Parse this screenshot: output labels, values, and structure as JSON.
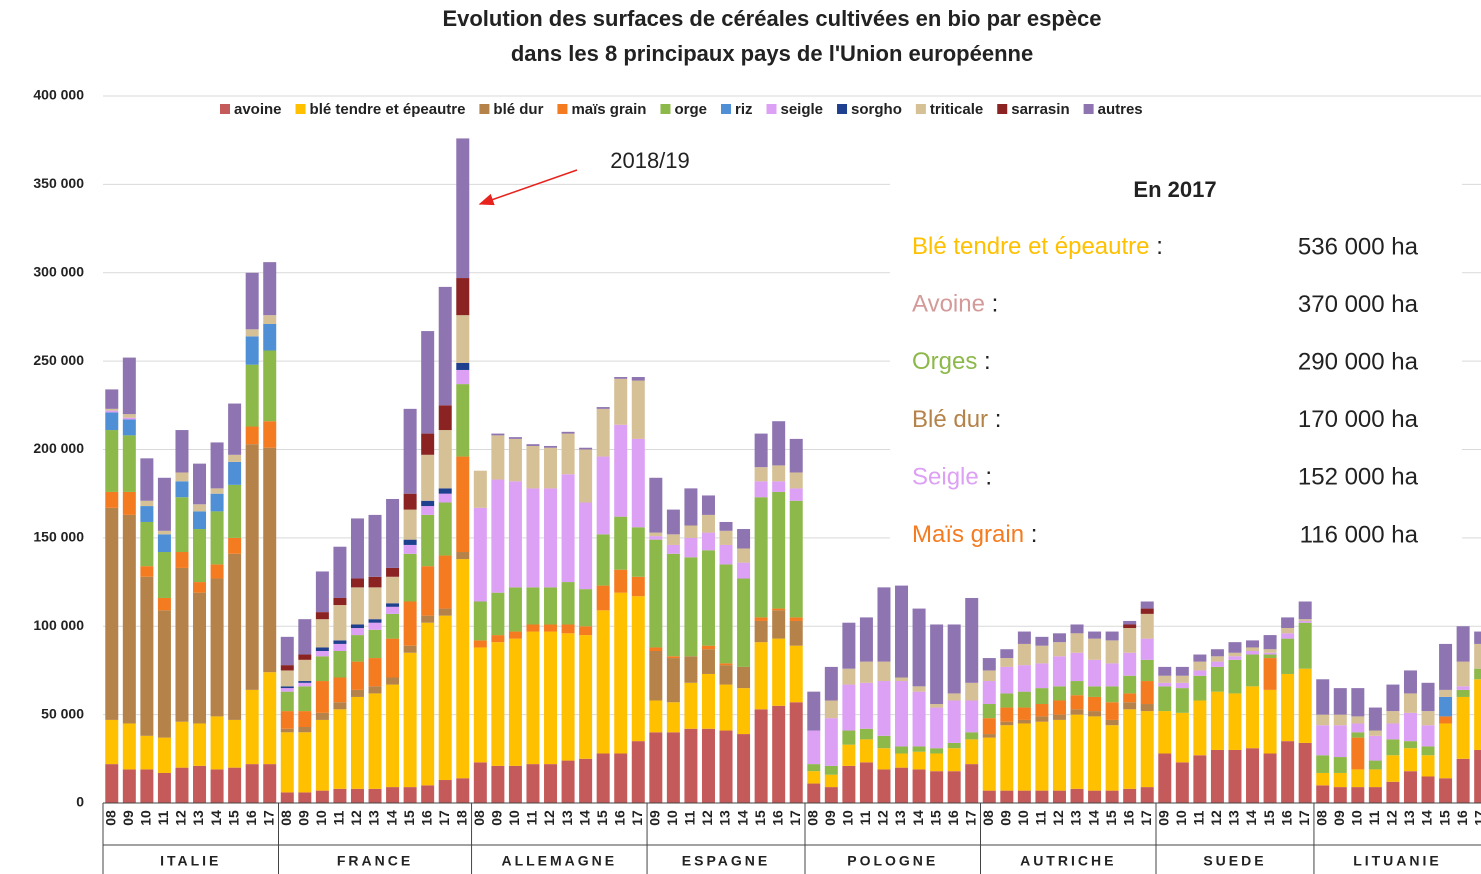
{
  "chart_data": {
    "type": "stacked_bar",
    "title": [
      "Evolution des surfaces de céréales cultivées en bio par espèce",
      "dans les 8 principaux pays de l'Union européenne"
    ],
    "groups": [
      {
        "label": "ITALIE",
        "categories": [
          "08",
          "09",
          "10",
          "11",
          "12",
          "13",
          "14",
          "15",
          "16",
          "17"
        ]
      },
      {
        "label": "FRANCE",
        "categories": [
          "08",
          "09",
          "10",
          "11",
          "12",
          "13",
          "14",
          "15",
          "16",
          "17",
          "18"
        ]
      },
      {
        "label": "ALLEMAGNE",
        "categories": [
          "08",
          "09",
          "10",
          "11",
          "12",
          "13",
          "14",
          "15",
          "16",
          "17"
        ]
      },
      {
        "label": "ESPAGNE",
        "categories": [
          "09",
          "10",
          "11",
          "12",
          "13",
          "14",
          "15",
          "16",
          "17"
        ]
      },
      {
        "label": "POLOGNE",
        "categories": [
          "08",
          "09",
          "10",
          "11",
          "12",
          "13",
          "14",
          "15",
          "16",
          "17"
        ]
      },
      {
        "label": "AUTRICHE",
        "categories": [
          "08",
          "09",
          "10",
          "11",
          "12",
          "13",
          "14",
          "15",
          "16",
          "17"
        ]
      },
      {
        "label": "SUEDE",
        "categories": [
          "09",
          "10",
          "11",
          "12",
          "13",
          "14",
          "15",
          "16",
          "17"
        ]
      },
      {
        "label": "LITUANIE",
        "categories": [
          "08",
          "09",
          "10",
          "11",
          "12",
          "13",
          "14",
          "15",
          "16",
          "17"
        ]
      }
    ],
    "series": [
      {
        "name": "avoine",
        "color": "#c55a5a",
        "values": [
          22000,
          19000,
          19000,
          17000,
          20000,
          21000,
          19000,
          20000,
          22000,
          22000,
          6000,
          6000,
          7000,
          8000,
          8000,
          8000,
          9000,
          9000,
          10000,
          13000,
          14000,
          23000,
          21000,
          21000,
          22000,
          22000,
          24000,
          25000,
          28000,
          28000,
          35000,
          40000,
          40000,
          42000,
          42000,
          41000,
          39000,
          53000,
          55000,
          57000,
          11000,
          9000,
          21000,
          23000,
          19000,
          20000,
          19000,
          18000,
          18000,
          22000,
          7000,
          7000,
          7000,
          7000,
          7000,
          8000,
          7000,
          7000,
          8000,
          9000,
          28000,
          23000,
          27000,
          30000,
          30000,
          31000,
          28000,
          35000,
          34000,
          10000,
          9000,
          9000,
          9000,
          12000,
          18000,
          15000,
          14000,
          25000,
          30000
        ]
      },
      {
        "name": "blé tendre et épeautre",
        "color": "#ffc000",
        "values": [
          25000,
          26000,
          19000,
          20000,
          26000,
          24000,
          30000,
          27000,
          42000,
          52000,
          34000,
          34000,
          40000,
          45000,
          52000,
          54000,
          58000,
          76000,
          92000,
          93000,
          124000,
          65000,
          70000,
          72000,
          75000,
          75000,
          72000,
          70000,
          81000,
          91000,
          82000,
          18000,
          17000,
          26000,
          31000,
          26000,
          26000,
          38000,
          38000,
          32000,
          7000,
          7000,
          12000,
          13000,
          12000,
          8000,
          10000,
          10000,
          13000,
          14000,
          30000,
          37000,
          38000,
          39000,
          40000,
          42000,
          42000,
          37000,
          45000,
          43000,
          24000,
          28000,
          31000,
          33000,
          32000,
          35000,
          36000,
          38000,
          42000,
          7000,
          8000,
          10000,
          10000,
          15000,
          13000,
          12000,
          31000,
          35000,
          40000
        ]
      },
      {
        "name": "blé dur",
        "color": "#b5834a",
        "values": [
          120000,
          118000,
          90000,
          72000,
          87000,
          74000,
          78000,
          94000,
          139000,
          127000,
          2000,
          3000,
          4000,
          4000,
          4000,
          4000,
          4000,
          4000,
          4000,
          4000,
          4000,
          0,
          0,
          0,
          0,
          0,
          0,
          0,
          0,
          0,
          0,
          28000,
          25000,
          15000,
          14000,
          11000,
          12000,
          12000,
          16000,
          14000,
          0,
          0,
          0,
          0,
          0,
          0,
          0,
          0,
          0,
          0,
          2000,
          2000,
          2000,
          3000,
          3000,
          3000,
          3000,
          3000,
          4000,
          4000,
          0,
          0,
          0,
          0,
          0,
          0,
          0,
          0,
          0,
          0,
          0,
          0,
          0,
          0,
          0,
          0,
          0,
          0,
          0
        ]
      },
      {
        "name": "maïs grain",
        "color": "#f47b20",
        "values": [
          9000,
          13000,
          6000,
          7000,
          9000,
          6000,
          8000,
          9000,
          10000,
          15000,
          10000,
          9000,
          18000,
          14000,
          16000,
          16000,
          22000,
          25000,
          28000,
          30000,
          54000,
          4000,
          4000,
          4000,
          4000,
          4000,
          5000,
          5000,
          14000,
          13000,
          11000,
          2000,
          1000,
          0,
          2000,
          1000,
          0,
          2000,
          1000,
          2000,
          0,
          0,
          0,
          0,
          0,
          0,
          0,
          0,
          0,
          0,
          9000,
          8000,
          7000,
          7000,
          8000,
          8000,
          8000,
          10000,
          5000,
          13000,
          0,
          0,
          0,
          0,
          0,
          0,
          18000,
          0,
          0,
          0,
          0,
          18000,
          0,
          0,
          0,
          0,
          4000,
          0,
          0
        ]
      },
      {
        "name": "orge",
        "color": "#8db84a",
        "values": [
          35000,
          32000,
          25000,
          26000,
          31000,
          30000,
          30000,
          30000,
          35000,
          40000,
          11000,
          14000,
          14000,
          15000,
          15000,
          16000,
          14000,
          27000,
          29000,
          30000,
          41000,
          22000,
          24000,
          25000,
          21000,
          21000,
          24000,
          21000,
          29000,
          30000,
          28000,
          61000,
          58000,
          56000,
          54000,
          56000,
          50000,
          68000,
          66000,
          66000,
          4000,
          5000,
          8000,
          6000,
          7000,
          4000,
          3000,
          3000,
          3000,
          4000,
          8000,
          8000,
          9000,
          9000,
          8000,
          8000,
          6000,
          9000,
          10000,
          12000,
          14000,
          14000,
          14000,
          14000,
          19000,
          18000,
          2000,
          20000,
          26000,
          10000,
          9000,
          3000,
          5000,
          9000,
          4000,
          5000,
          0,
          4000,
          6000
        ]
      },
      {
        "name": "riz",
        "color": "#4f8fd6",
        "values": [
          10000,
          9000,
          9000,
          10000,
          9000,
          10000,
          10000,
          13000,
          16000,
          15000,
          0,
          0,
          0,
          0,
          0,
          0,
          0,
          0,
          0,
          0,
          0,
          0,
          0,
          0,
          0,
          0,
          0,
          0,
          0,
          0,
          0,
          0,
          0,
          0,
          0,
          0,
          0,
          0,
          0,
          0,
          0,
          0,
          0,
          0,
          0,
          0,
          0,
          0,
          0,
          0,
          0,
          0,
          0,
          0,
          0,
          0,
          0,
          0,
          0,
          0,
          0,
          0,
          0,
          0,
          0,
          0,
          0,
          0,
          0,
          0,
          0,
          0,
          0,
          0,
          0,
          0,
          11000,
          0,
          0
        ]
      },
      {
        "name": "seigle",
        "color": "#dca0f4",
        "values": [
          1000,
          1000,
          0,
          0,
          0,
          0,
          0,
          0,
          0,
          0,
          2000,
          2000,
          3000,
          4000,
          4000,
          4000,
          4000,
          5000,
          5000,
          5000,
          8000,
          53000,
          64000,
          60000,
          56000,
          56000,
          61000,
          49000,
          44000,
          52000,
          50000,
          2000,
          5000,
          11000,
          10000,
          11000,
          9000,
          9000,
          6000,
          7000,
          19000,
          27000,
          26000,
          26000,
          31000,
          37000,
          31000,
          23000,
          24000,
          18000,
          13000,
          15000,
          15000,
          14000,
          17000,
          16000,
          15000,
          13000,
          13000,
          12000,
          2000,
          3000,
          3000,
          3000,
          2000,
          2000,
          1000,
          3000,
          1000,
          17000,
          18000,
          5000,
          14000,
          9000,
          16000,
          12000,
          0,
          2000,
          0
        ]
      },
      {
        "name": "sorgho",
        "color": "#1f3f8f",
        "values": [
          0,
          0,
          0,
          0,
          0,
          0,
          0,
          0,
          0,
          0,
          1000,
          1000,
          2000,
          2000,
          2000,
          2000,
          2000,
          3000,
          3000,
          3000,
          4000,
          0,
          0,
          0,
          0,
          0,
          0,
          0,
          0,
          0,
          0,
          0,
          0,
          0,
          0,
          0,
          0,
          0,
          0,
          0,
          0,
          0,
          0,
          0,
          0,
          0,
          0,
          0,
          0,
          0,
          0,
          0,
          0,
          0,
          0,
          0,
          0,
          0,
          0,
          0,
          0,
          0,
          0,
          0,
          0,
          0,
          0,
          0,
          0,
          0,
          0,
          0,
          0,
          0,
          0,
          0,
          0,
          0,
          0
        ]
      },
      {
        "name": "triticale",
        "color": "#d6c096",
        "values": [
          1000,
          2000,
          3000,
          2000,
          5000,
          4000,
          3000,
          4000,
          4000,
          5000,
          9000,
          12000,
          16000,
          20000,
          21000,
          18000,
          15000,
          17000,
          26000,
          33000,
          27000,
          21000,
          25000,
          24000,
          24000,
          23000,
          23000,
          30000,
          27000,
          26000,
          33000,
          2000,
          6000,
          7000,
          10000,
          8000,
          8000,
          8000,
          9000,
          9000,
          0,
          10000,
          9000,
          12000,
          11000,
          2000,
          3000,
          2000,
          4000,
          10000,
          6000,
          5000,
          12000,
          10000,
          8000,
          11000,
          12000,
          13000,
          14000,
          14000,
          4000,
          4000,
          5000,
          3000,
          2000,
          2000,
          2000,
          3000,
          1000,
          6000,
          6000,
          4000,
          3000,
          7000,
          11000,
          8000,
          4000,
          14000,
          14000
        ]
      },
      {
        "name": "sarrasin",
        "color": "#8b2323",
        "values": [
          0,
          0,
          0,
          0,
          0,
          0,
          0,
          0,
          0,
          0,
          3000,
          3000,
          4000,
          4000,
          5000,
          6000,
          5000,
          9000,
          12000,
          14000,
          21000,
          0,
          0,
          0,
          0,
          0,
          0,
          0,
          0,
          0,
          0,
          0,
          0,
          0,
          0,
          0,
          0,
          0,
          0,
          0,
          0,
          0,
          0,
          0,
          0,
          0,
          0,
          0,
          0,
          0,
          0,
          0,
          0,
          0,
          0,
          0,
          0,
          0,
          2000,
          3000,
          0,
          0,
          0,
          0,
          0,
          0,
          0,
          0,
          0,
          0,
          0,
          0,
          0,
          0,
          0,
          0,
          0,
          0,
          0
        ]
      },
      {
        "name": "autres",
        "color": "#8e74b0",
        "values": [
          11000,
          32000,
          24000,
          30000,
          24000,
          23000,
          26000,
          29000,
          32000,
          30000,
          16000,
          20000,
          23000,
          29000,
          34000,
          35000,
          39000,
          48000,
          58000,
          67000,
          79000,
          0,
          1000,
          1000,
          1000,
          1000,
          1000,
          1000,
          1000,
          1000,
          2000,
          31000,
          14000,
          21000,
          11000,
          5000,
          11000,
          19000,
          25000,
          19000,
          22000,
          19000,
          26000,
          25000,
          42000,
          52000,
          44000,
          45000,
          39000,
          48000,
          7000,
          5000,
          7000,
          5000,
          5000,
          5000,
          4000,
          5000,
          2000,
          4000,
          5000,
          5000,
          4000,
          4000,
          6000,
          4000,
          8000,
          6000,
          10000,
          20000,
          15000,
          16000,
          13000,
          15000,
          13000,
          16000,
          26000,
          20000,
          7000
        ]
      }
    ],
    "ylim": [
      0,
      400000
    ],
    "yticks": [
      0,
      {
        "value": 50000,
        "label": "50 000"
      },
      {
        "value": 100000,
        "label": "100 000"
      },
      {
        "value": 150000,
        "label": "150 000"
      },
      {
        "value": 200000,
        "label": "200 000"
      },
      {
        "value": 250000,
        "label": "250 000"
      },
      {
        "value": 300000,
        "label": "300 000"
      },
      {
        "value": 350000,
        "label": "350 000"
      },
      {
        "value": 400000,
        "label": "400 000"
      }
    ],
    "grid": true,
    "legend": "top",
    "annotation": {
      "text": "2018/19",
      "color": "#e8231e"
    },
    "info_box": {
      "title": "En 2017",
      "rows": [
        {
          "label": "Blé tendre et épeautre",
          "separator": ":",
          "value": "536 000 ha",
          "color": "#ffc000"
        },
        {
          "label": "Avoine",
          "separator": ":",
          "value": "370 000 ha",
          "color": "#d49a9a"
        },
        {
          "label": "Orges",
          "separator": ":",
          "value": "290 000 ha",
          "color": "#8db84a"
        },
        {
          "label": "Blé dur",
          "separator": ":",
          "value": "170 000 ha",
          "color": "#b5834a"
        },
        {
          "label": "Seigle",
          "separator": ":",
          "value": "152 000 ha",
          "color": "#dca0f4"
        },
        {
          "label": "Maïs grain",
          "separator": ":",
          "value": "116 000 ha",
          "color": "#f47b20"
        }
      ]
    }
  }
}
